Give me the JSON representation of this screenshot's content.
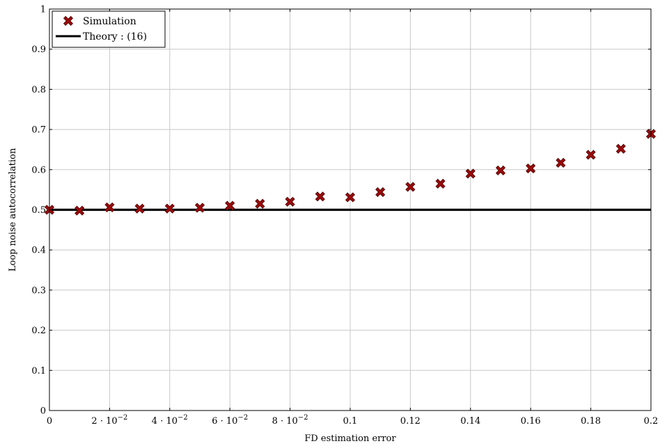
{
  "chart_data": {
    "type": "scatter",
    "xlabel": "FD estimation error",
    "ylabel": "Loop noise autocorrelation",
    "xlim": [
      0,
      0.2
    ],
    "ylim": [
      0,
      1
    ],
    "grid": true,
    "legend_position": "top-left",
    "x_ticks": [
      {
        "value": 0,
        "label": "0"
      },
      {
        "value": 0.02,
        "mant": "2",
        "exp": "−2"
      },
      {
        "value": 0.04,
        "mant": "4",
        "exp": "−2"
      },
      {
        "value": 0.06,
        "mant": "6",
        "exp": "−2"
      },
      {
        "value": 0.08,
        "mant": "8",
        "exp": "−2"
      },
      {
        "value": 0.1,
        "label": "0.1"
      },
      {
        "value": 0.12,
        "label": "0.12"
      },
      {
        "value": 0.14,
        "label": "0.14"
      },
      {
        "value": 0.16,
        "label": "0.16"
      },
      {
        "value": 0.18,
        "label": "0.18"
      },
      {
        "value": 0.2,
        "label": "0.2"
      }
    ],
    "y_ticks": [
      {
        "value": 0,
        "label": "0"
      },
      {
        "value": 0.1,
        "label": "0.1"
      },
      {
        "value": 0.2,
        "label": "0.2"
      },
      {
        "value": 0.3,
        "label": "0.3"
      },
      {
        "value": 0.4,
        "label": "0.4"
      },
      {
        "value": 0.5,
        "label": "0.5"
      },
      {
        "value": 0.6,
        "label": "0.6"
      },
      {
        "value": 0.7,
        "label": "0.7"
      },
      {
        "value": 0.8,
        "label": "0.8"
      },
      {
        "value": 0.9,
        "label": "0.9"
      },
      {
        "value": 1,
        "label": "1"
      }
    ],
    "series": [
      {
        "name": "Simulation",
        "style": "markers",
        "marker": "cross",
        "color": "#9b0a0a",
        "x": [
          0,
          0.01,
          0.02,
          0.03,
          0.04,
          0.05,
          0.06,
          0.07,
          0.08,
          0.09,
          0.1,
          0.11,
          0.12,
          0.13,
          0.14,
          0.15,
          0.16,
          0.17,
          0.18,
          0.19,
          0.2
        ],
        "y": [
          0.5,
          0.498,
          0.506,
          0.503,
          0.503,
          0.505,
          0.51,
          0.515,
          0.52,
          0.533,
          0.531,
          0.544,
          0.557,
          0.565,
          0.59,
          0.598,
          0.603,
          0.617,
          0.637,
          0.652,
          0.689
        ]
      },
      {
        "name": "Theory : (16)",
        "style": "line",
        "color": "#000000",
        "x": [
          0,
          0.2
        ],
        "y": [
          0.5,
          0.5
        ]
      }
    ]
  }
}
